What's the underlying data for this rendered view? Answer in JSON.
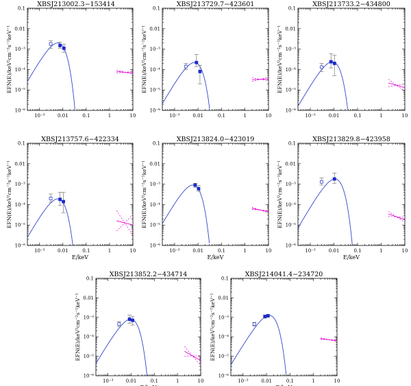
{
  "chart_data": [
    {
      "type": "scatter",
      "title": "XBSJ213002.3−153414",
      "xlabel": "",
      "ylabel": "EFN(E)/keV²cm⁻²s⁻¹keV⁻¹",
      "xscale": "log",
      "yscale": "log",
      "xlim": [
        0.0003,
        10
      ],
      "ylim": [
        1e-06,
        0.1
      ],
      "xticks": [
        "10⁻³",
        "0.01",
        "0.1",
        "1",
        "10"
      ],
      "yticks": [
        "10⁻⁶",
        "10⁻⁵",
        "10⁻⁴",
        "10⁻³",
        "0.01",
        "0.1"
      ],
      "points": [
        {
          "x": 0.003,
          "y": 0.0018,
          "lo": 0.0011,
          "hi": 0.0026,
          "filled": false
        },
        {
          "x": 0.0075,
          "y": 0.0015,
          "lo": 0.0011,
          "hi": 0.0022,
          "filled": true
        },
        {
          "x": 0.011,
          "y": 0.0011,
          "lo": 0.0007,
          "hi": 0.0017,
          "filled": true
        }
      ],
      "model": {
        "peak_x": 0.006,
        "peak_y": 0.002
      },
      "powerlaw": {
        "x": [
          2,
          10
        ],
        "y": [
          8e-05,
          6.8e-05
        ],
        "spread": 0.07
      }
    },
    {
      "type": "scatter",
      "title": "XBSJ213729.7−423601",
      "xlabel": "",
      "ylabel": "EFN(E)/keV²cm⁻²s⁻¹keV⁻¹",
      "xscale": "log",
      "yscale": "log",
      "xlim": [
        0.0003,
        10
      ],
      "ylim": [
        1e-06,
        0.1
      ],
      "xticks": [
        "10⁻³",
        "0.01",
        "0.1",
        "1",
        "10"
      ],
      "yticks": [
        "10⁻⁶",
        "10⁻⁵",
        "10⁻⁴",
        "10⁻³",
        "0.01",
        "0.1"
      ],
      "points": [
        {
          "x": 0.003,
          "y": 0.00014,
          "lo": 0.0001,
          "hi": 0.0002,
          "filled": false
        },
        {
          "x": 0.0085,
          "y": 0.00022,
          "lo": 0.00014,
          "hi": 0.00055,
          "filled": true
        },
        {
          "x": 0.012,
          "y": 8e-05,
          "lo": 2e-05,
          "hi": 0.00016,
          "filled": true
        }
      ],
      "model": {
        "peak_x": 0.007,
        "peak_y": 0.00022
      },
      "powerlaw": {
        "x": [
          2,
          10
        ],
        "y": [
          3.2e-05,
          3.4e-05
        ],
        "spread": 0.09
      }
    },
    {
      "type": "scatter",
      "title": "XBSJ213733.2−434800",
      "xlabel": "",
      "ylabel": "EFN(E)/keV²cm⁻²s⁻¹keV⁻¹",
      "xscale": "log",
      "yscale": "log",
      "xlim": [
        0.0003,
        10
      ],
      "ylim": [
        1e-06,
        0.1
      ],
      "xticks": [
        "10⁻³",
        "0.01",
        "0.1",
        "1",
        "10"
      ],
      "yticks": [
        "10⁻⁶",
        "10⁻⁵",
        "10⁻⁴",
        "10⁻³",
        "0.01",
        "0.1"
      ],
      "points": [
        {
          "x": 0.003,
          "y": 0.00013,
          "lo": 8e-05,
          "hi": 0.0002,
          "filled": false
        },
        {
          "x": 0.0075,
          "y": 0.00024,
          "lo": 0.00012,
          "hi": 0.0006,
          "filled": true
        },
        {
          "x": 0.0105,
          "y": 0.0002,
          "lo": 5e-05,
          "hi": 0.0005,
          "filled": true
        }
      ],
      "model": {
        "peak_x": 0.0085,
        "peak_y": 0.00024
      },
      "powerlaw": {
        "x": [
          2,
          10
        ],
        "y": [
          2.2e-05,
          1.3e-05
        ],
        "spread": 0.18
      }
    },
    {
      "type": "scatter",
      "title": "XBSJ213757.6−422334",
      "xlabel": "E/keV",
      "ylabel": "EFN(E)/keV²cm⁻²s⁻¹keV⁻¹",
      "xscale": "log",
      "yscale": "log",
      "xlim": [
        0.0003,
        10
      ],
      "ylim": [
        1e-06,
        0.1
      ],
      "xticks": [
        "10⁻³",
        "0.01",
        "0.1",
        "1",
        "10"
      ],
      "yticks": [
        "10⁻⁶",
        "10⁻⁵",
        "10⁻⁴",
        "10⁻³",
        "0.01",
        "0.1"
      ],
      "points": [
        {
          "x": 0.003,
          "y": 0.0002,
          "lo": 0.00013,
          "hi": 0.00033,
          "filled": false
        },
        {
          "x": 0.0075,
          "y": 0.00018,
          "lo": 9e-05,
          "hi": 0.0004,
          "filled": true
        },
        {
          "x": 0.0105,
          "y": 0.00014,
          "lo": 4e-05,
          "hi": 0.0004,
          "filled": true
        }
      ],
      "model": {
        "peak_x": 0.006,
        "peak_y": 0.00019
      },
      "powerlaw": {
        "x": [
          2,
          10
        ],
        "y": [
          1.6e-05,
          1e-05
        ],
        "spread": 0.5
      }
    },
    {
      "type": "scatter",
      "title": "XBSJ213824.0−423019",
      "xlabel": "E/keV",
      "ylabel": "EFN(E)/keV²cm⁻²s⁻¹keV⁻¹",
      "xscale": "log",
      "yscale": "log",
      "xlim": [
        0.0003,
        10
      ],
      "ylim": [
        1e-06,
        0.1
      ],
      "xticks": [
        "10⁻³",
        "0.01",
        "0.1",
        "1",
        "10"
      ],
      "yticks": [
        "10⁻⁶",
        "10⁻⁵",
        "10⁻⁴",
        "10⁻³",
        "0.01",
        "0.1"
      ],
      "points": [
        {
          "x": 0.0075,
          "y": 0.0009,
          "lo": 0.0007,
          "hi": 0.0011,
          "filled": true
        },
        {
          "x": 0.0105,
          "y": 0.0006,
          "lo": 0.00045,
          "hi": 0.00085,
          "filled": true
        }
      ],
      "model": {
        "peak_x": 0.006,
        "peak_y": 0.0009
      },
      "powerlaw": {
        "x": [
          2,
          10
        ],
        "y": [
          6.5e-05,
          4.5e-05
        ],
        "spread": 0.05
      }
    },
    {
      "type": "scatter",
      "title": "XBSJ213829.8−423958",
      "xlabel": "E/keV",
      "ylabel": "EFN(E)/keV²cm⁻²s⁻¹keV⁻¹",
      "xscale": "log",
      "yscale": "log",
      "xlim": [
        0.0003,
        10
      ],
      "ylim": [
        1e-06,
        0.1
      ],
      "xticks": [
        "10⁻³",
        "0.01",
        "0.1",
        "1",
        "10"
      ],
      "yticks": [
        "10⁻⁶",
        "10⁻⁵",
        "10⁻⁴",
        "10⁻³",
        "0.01",
        "0.1"
      ],
      "points": [
        {
          "x": 0.003,
          "y": 0.0013,
          "lo": 0.0009,
          "hi": 0.002,
          "filled": false
        },
        {
          "x": 0.0105,
          "y": 0.0018,
          "lo": 0.0011,
          "hi": 0.0035,
          "filled": true
        }
      ],
      "model": {
        "peak_x": 0.011,
        "peak_y": 0.0018
      },
      "powerlaw": {
        "x": [
          2,
          10
        ],
        "y": [
          3.5e-05,
          1.8e-05
        ],
        "spread": 0.12
      }
    },
    {
      "type": "scatter",
      "title": "XBSJ213852.2−434714",
      "xlabel": "E/keV",
      "ylabel": "EFN(E)/keV²cm⁻²s⁻¹keV⁻¹",
      "xscale": "log",
      "yscale": "log",
      "xlim": [
        0.0003,
        10
      ],
      "ylim": [
        1e-06,
        0.1
      ],
      "xticks": [
        "10⁻³",
        "0.01",
        "0.1",
        "1",
        "10"
      ],
      "yticks": [
        "10⁻⁶",
        "10⁻⁵",
        "10⁻⁴",
        "10⁻³",
        "0.01",
        "0.1"
      ],
      "points": [
        {
          "x": 0.003,
          "y": 0.00045,
          "lo": 0.00033,
          "hi": 0.0006,
          "filled": false
        },
        {
          "x": 0.0085,
          "y": 0.0008,
          "lo": 0.0005,
          "hi": 0.0013,
          "filled": true
        },
        {
          "x": 0.0115,
          "y": 0.0007,
          "lo": 0.0004,
          "hi": 0.0011,
          "filled": true
        }
      ],
      "model": {
        "peak_x": 0.0095,
        "peak_y": 0.0008
      },
      "powerlaw": {
        "x": [
          2,
          10
        ],
        "y": [
          1.8e-05,
          6e-06
        ],
        "spread": 0.25
      }
    },
    {
      "type": "scatter",
      "title": "XBSJ214041.4−234720",
      "xlabel": "E/keV",
      "ylabel": "EFN(E)/keV²cm⁻²s⁻¹keV⁻¹",
      "xscale": "log",
      "yscale": "log",
      "xlim": [
        0.0003,
        10
      ],
      "ylim": [
        1e-06,
        0.1
      ],
      "xticks": [
        "10⁻³",
        "0.01",
        "0.1",
        "1",
        "10"
      ],
      "yticks": [
        "10⁻⁶",
        "10⁻⁵",
        "10⁻⁴",
        "10⁻³",
        "0.01",
        "0.1"
      ],
      "points": [
        {
          "x": 0.003,
          "y": 0.00045,
          "lo": 0.00035,
          "hi": 0.00055,
          "filled": false
        },
        {
          "x": 0.0085,
          "y": 0.0011,
          "lo": 0.0009,
          "hi": 0.0013,
          "filled": true
        },
        {
          "x": 0.0115,
          "y": 0.0012,
          "lo": 0.001,
          "hi": 0.0014,
          "filled": true
        }
      ],
      "model": {
        "peak_x": 0.013,
        "peak_y": 0.00125
      },
      "powerlaw": {
        "x": [
          2,
          10
        ],
        "y": [
          8e-05,
          6.3e-05
        ],
        "spread": 0.04
      }
    }
  ],
  "colors": {
    "model": "#3344cc",
    "powerlaw": "#e000d0",
    "errorbar": "#7a7a7a",
    "point": "#1a2acc"
  }
}
